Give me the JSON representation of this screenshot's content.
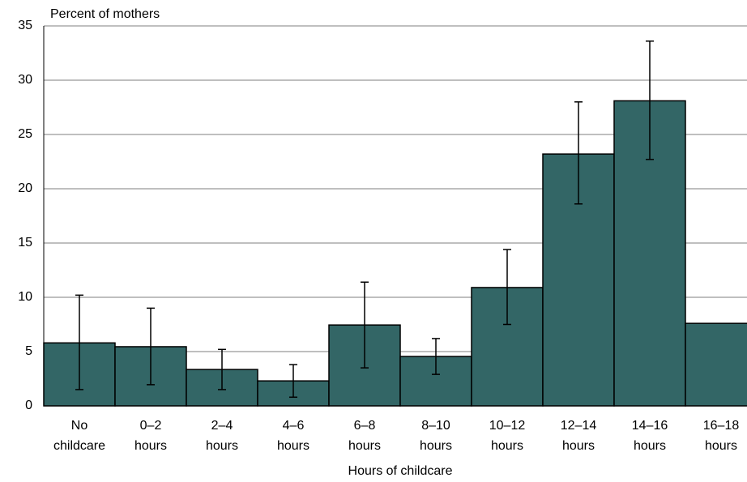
{
  "chart_data": {
    "type": "bar",
    "ylabel": "Percent of mothers",
    "xlabel": "Hours of childcare",
    "categories": [
      "No childcare",
      "0–2 hours",
      "2–4 hours",
      "4–6 hours",
      "6–8 hours",
      "8–10 hours",
      "10–12 hours",
      "12–14 hours",
      "14–16 hours",
      "16–18 hours"
    ],
    "values": [
      5.8,
      5.45,
      3.35,
      2.3,
      7.45,
      4.55,
      10.9,
      23.2,
      28.1,
      7.6
    ],
    "lower": [
      1.5,
      1.95,
      1.5,
      0.8,
      3.5,
      2.9,
      7.5,
      18.6,
      22.7,
      null
    ],
    "upper": [
      10.2,
      9.0,
      5.2,
      3.8,
      11.4,
      6.2,
      14.4,
      28.0,
      33.6,
      null
    ],
    "color": "#336666",
    "ylim": [
      0,
      35
    ],
    "yticks": [
      0,
      5,
      10,
      15,
      20,
      25,
      30,
      35
    ],
    "grid": true
  }
}
